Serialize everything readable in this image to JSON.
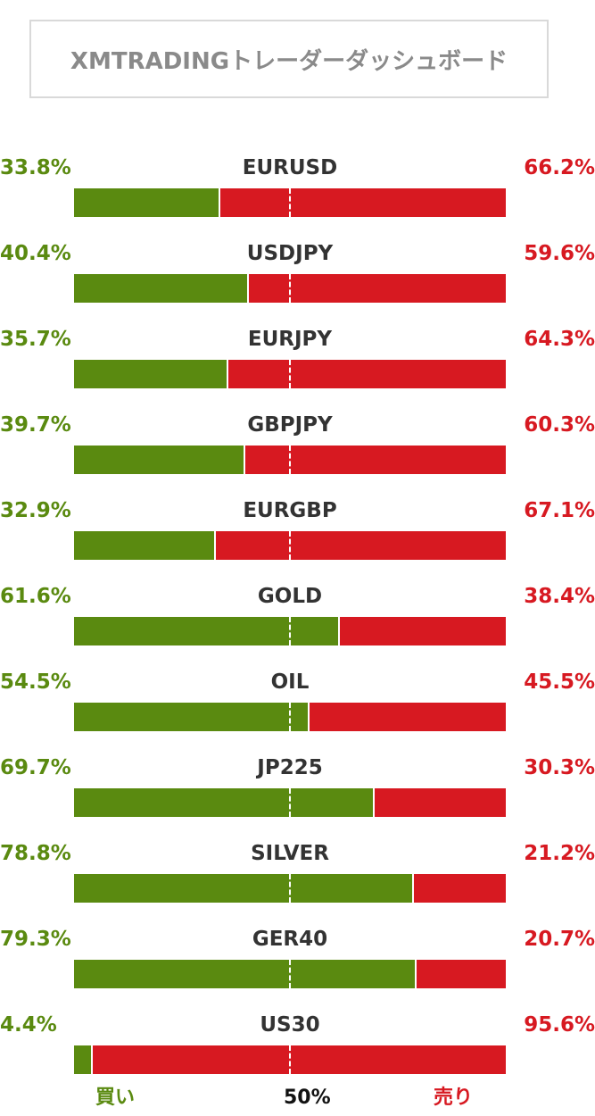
{
  "chart_data": {
    "type": "bar",
    "title": "XMTRADINGトレーダーダッシュボード",
    "categories": [
      "EURUSD",
      "USDJPY",
      "EURJPY",
      "GBPJPY",
      "EURGBP",
      "GOLD",
      "OIL",
      "JP225",
      "SILVER",
      "GER40",
      "US30"
    ],
    "series": [
      {
        "name": "買い",
        "values": [
          33.8,
          40.4,
          35.7,
          39.7,
          32.9,
          61.6,
          54.5,
          69.7,
          78.8,
          79.3,
          4.4
        ]
      },
      {
        "name": "売り",
        "values": [
          66.2,
          59.6,
          64.3,
          60.3,
          67.1,
          38.4,
          45.5,
          30.3,
          21.2,
          20.7,
          95.6
        ]
      }
    ],
    "buy_labels": [
      "33.8%",
      "40.4%",
      "35.7%",
      "39.7%",
      "32.9%",
      "61.6%",
      "54.5%",
      "69.7%",
      "78.8%",
      "79.3%",
      "4.4%"
    ],
    "sell_labels": [
      "66.2%",
      "59.6%",
      "64.3%",
      "60.3%",
      "67.1%",
      "38.4%",
      "45.5%",
      "30.3%",
      "21.2%",
      "20.7%",
      "95.6%"
    ],
    "reference_label": "50%",
    "buy_legend": "買い",
    "sell_legend": "売り",
    "xlim": [
      0,
      100
    ],
    "stacked": true,
    "orientation": "horizontal",
    "colors": {
      "buy": "#5a8a10",
      "sell": "#d71921"
    }
  }
}
